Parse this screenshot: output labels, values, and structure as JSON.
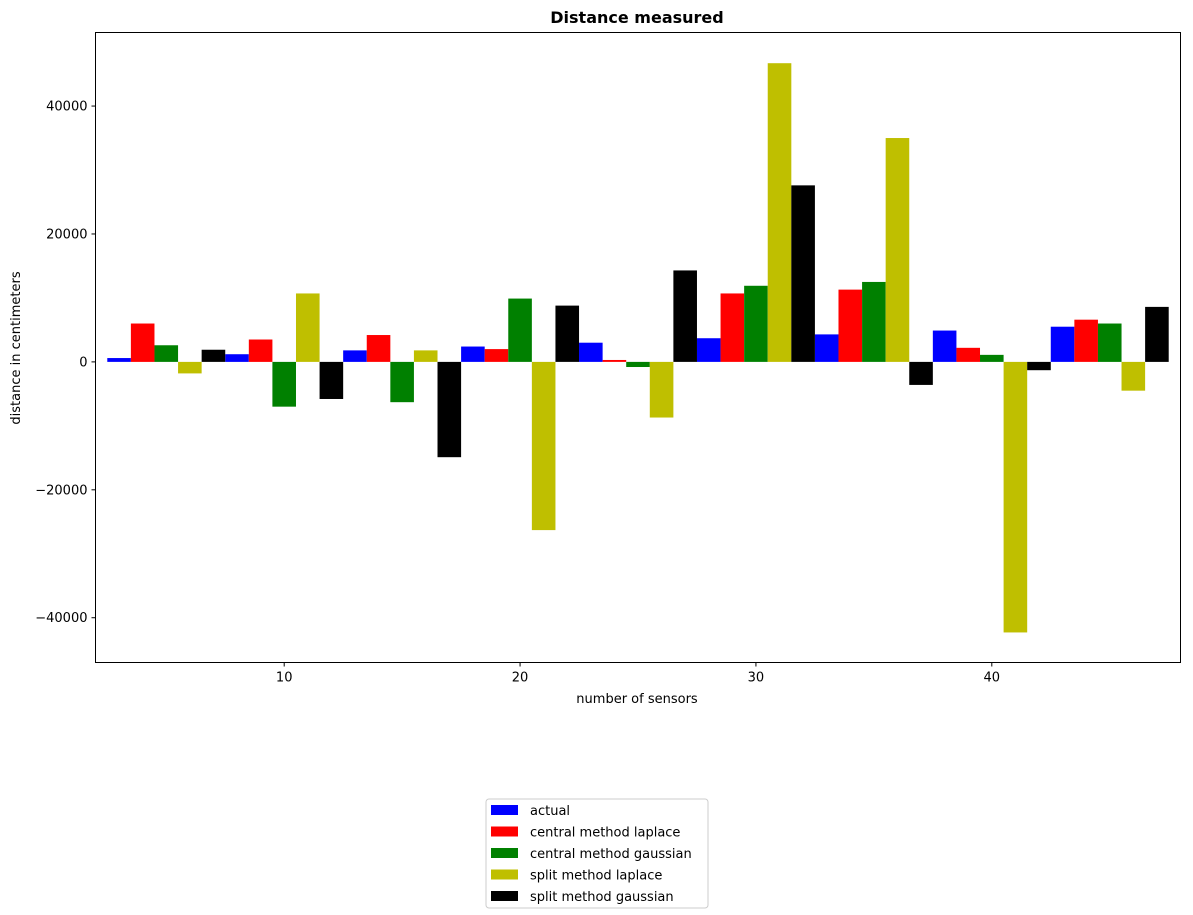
{
  "chart_data": {
    "type": "bar",
    "title": "Distance measured",
    "xlabel": "number of sensors",
    "ylabel": "distance in centimeters",
    "groups_x": [
      5,
      10,
      15,
      20,
      25,
      30,
      35,
      40,
      45
    ],
    "xticks": [
      10,
      20,
      30,
      40
    ],
    "xtick_labels": [
      "10",
      "20",
      "30",
      "40"
    ],
    "xlim": [
      2,
      48
    ],
    "ylim": [
      -47000,
      51500
    ],
    "yticks": [
      -40000,
      -20000,
      0,
      20000,
      40000
    ],
    "ytick_labels": [
      "−40000",
      "−20000",
      "0",
      "20000",
      "40000"
    ],
    "grid": false,
    "legend_position": "below the plot, centered",
    "series": [
      {
        "name": "actual",
        "color": "#0000ff",
        "values": [
          600,
          1200,
          1800,
          2400,
          3000,
          3700,
          4300,
          4900,
          5500
        ]
      },
      {
        "name": "central method laplace",
        "color": "#ff0000",
        "values": [
          6000,
          3500,
          4200,
          2000,
          300,
          10700,
          11300,
          2200,
          6600
        ]
      },
      {
        "name": "central method gaussian",
        "color": "#008000",
        "values": [
          2600,
          -7000,
          -6300,
          9900,
          -800,
          11900,
          12500,
          1100,
          6000
        ]
      },
      {
        "name": "split method laplace",
        "color": "#bfbf00",
        "values": [
          -1800,
          10700,
          1800,
          -26300,
          -8700,
          46700,
          35000,
          -42300,
          -4500
        ]
      },
      {
        "name": "split method gaussian",
        "color": "#000000",
        "values": [
          1900,
          -5800,
          -14900,
          8800,
          14300,
          27600,
          -3600,
          -1300,
          8600
        ]
      }
    ]
  }
}
